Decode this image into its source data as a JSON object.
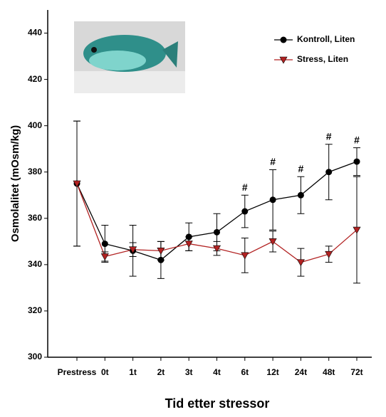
{
  "chart_data": {
    "type": "line",
    "ylabel": "Osmolalitet (mOsm/kg)",
    "xlabel": "Tid etter stressor",
    "categories": [
      "Prestress",
      "0t",
      "1t",
      "2t",
      "3t",
      "4t",
      "6t",
      "12t",
      "24t",
      "48t",
      "72t"
    ],
    "series": [
      {
        "name": "Kontroll, Liten",
        "color": "#000000",
        "marker": "circle",
        "values": [
          375,
          349,
          346,
          342,
          352,
          354,
          363,
          368,
          370,
          380,
          384.5
        ],
        "errors": [
          27,
          8,
          11,
          8,
          6,
          8,
          7,
          13,
          8,
          12,
          6
        ]
      },
      {
        "name": "Stress, Liten",
        "color": "#b22222",
        "marker": "triangle-down",
        "values": [
          375,
          343.5,
          346.5,
          346,
          349,
          347,
          344,
          350,
          341,
          344.5,
          355
        ],
        "errors": [
          27,
          2,
          3,
          4,
          3,
          3,
          7.5,
          4.5,
          6,
          3.5,
          23
        ]
      }
    ],
    "annotations": [
      {
        "text": "#",
        "category": "6t"
      },
      {
        "text": "#",
        "category": "12t"
      },
      {
        "text": "#",
        "category": "24t"
      },
      {
        "text": "#",
        "category": "48t"
      },
      {
        "text": "#",
        "category": "72t"
      }
    ],
    "ylim": [
      300,
      450
    ],
    "yticks": [
      300,
      320,
      340,
      360,
      380,
      400,
      420,
      440
    ],
    "legend": "upper right"
  }
}
